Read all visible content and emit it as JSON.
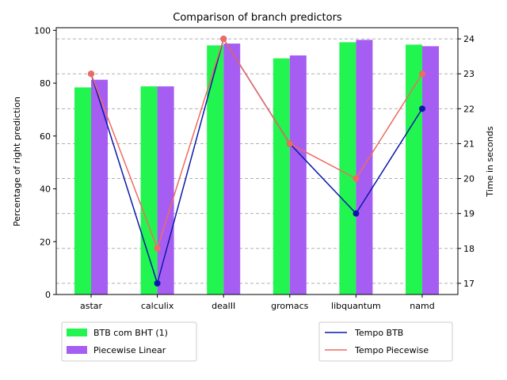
{
  "chart_data": {
    "type": "bar",
    "title": "Comparison of branch predictors",
    "categories": [
      "astar",
      "calculix",
      "dealII",
      "gromacs",
      "libquantum",
      "namd"
    ],
    "ylabel": "Percentage of right prediction",
    "y2label": "Time in seconds",
    "ylim": [
      0,
      101
    ],
    "y2lim": [
      16.68,
      24.32
    ],
    "yticks": [
      "0",
      "20",
      "40",
      "60",
      "80",
      "100"
    ],
    "y2ticks": [
      "17",
      "18",
      "19",
      "20",
      "21",
      "22",
      "23",
      "24"
    ],
    "bar_series": [
      {
        "name": "BTB com BHT (1)",
        "color": "#22f550",
        "values": [
          78.4,
          78.8,
          94.3,
          89.4,
          95.5,
          94.6
        ]
      },
      {
        "name": "Piecewise Linear",
        "color": "#a65ef2",
        "values": [
          81.3,
          78.8,
          95.0,
          90.5,
          96.4,
          94.0
        ]
      }
    ],
    "line_series": [
      {
        "name": "Tempo BTB",
        "color": "#0a1aa8",
        "values": [
          23,
          17,
          24,
          21,
          19,
          22
        ]
      },
      {
        "name": "Tempo Piecewise",
        "color": "#ef6b62",
        "values": [
          23,
          18,
          24,
          21,
          20,
          23
        ]
      }
    ],
    "grid": "dashed horizontal on right axis",
    "legends": [
      "bottom-left",
      "bottom-right"
    ]
  }
}
